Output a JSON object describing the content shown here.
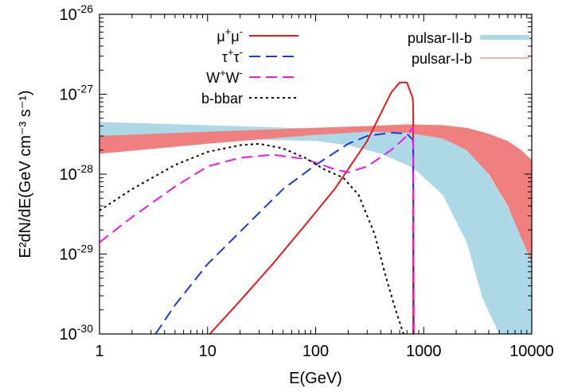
{
  "chart_data": {
    "type": "line",
    "xlabel": "E(GeV)",
    "ylabel": "E²dN/dE(GeV cm⁻³ s⁻¹)",
    "xscale": "log",
    "yscale": "log",
    "xlim": [
      1,
      10000
    ],
    "ylim": [
      1e-30,
      1e-26
    ],
    "grid": false,
    "legend_placement": "top-left and top-right",
    "x_ticks": [
      {
        "value": 1,
        "label": "1"
      },
      {
        "value": 10,
        "label": "10"
      },
      {
        "value": 100,
        "label": "100"
      },
      {
        "value": 1000,
        "label": "1000"
      },
      {
        "value": 10000,
        "label": "10000"
      }
    ],
    "y_ticks": [
      {
        "value": 1e-30,
        "base": "10",
        "exp": "-30"
      },
      {
        "value": 1e-29,
        "base": "10",
        "exp": "-29"
      },
      {
        "value": 1e-28,
        "base": "10",
        "exp": "-28"
      },
      {
        "value": 1e-27,
        "base": "10",
        "exp": "-27"
      },
      {
        "value": 1e-26,
        "base": "10",
        "exp": "-26"
      }
    ],
    "series": [
      {
        "name": "μ⁺μ⁻",
        "color": "#e41a1c",
        "style": "solid",
        "x": [
          10.5,
          20,
          40,
          80,
          150,
          300,
          500,
          600,
          700,
          790,
          800,
          800
        ],
        "y": [
          1e-30,
          2.6e-30,
          7.5e-30,
          2.3e-29,
          6.5e-29,
          2.6e-28,
          1.05e-27,
          1.4e-27,
          1.4e-27,
          9e-28,
          7e-28,
          1e-30
        ]
      },
      {
        "name": "τ⁺τ⁻",
        "color": "#1f3bd6",
        "style": "dashed",
        "x": [
          3.3,
          5,
          10,
          20,
          50,
          100,
          200,
          300,
          500,
          700,
          790,
          800,
          810
        ],
        "y": [
          1e-30,
          2.3e-30,
          7.5e-30,
          1.9e-29,
          6.5e-29,
          1.3e-28,
          2.4e-28,
          3e-28,
          3.3e-28,
          3.2e-28,
          2.7e-28,
          2.3e-28,
          1e-30
        ]
      },
      {
        "name": "W⁺W⁻",
        "color": "#e81be8",
        "style": "dashed",
        "x": [
          1,
          2,
          5,
          10,
          20,
          40,
          80,
          150,
          200,
          300,
          500,
          700,
          790,
          800,
          810
        ],
        "y": [
          1.4e-29,
          2.9e-29,
          7e-29,
          1.25e-28,
          1.6e-28,
          1.75e-28,
          1.55e-28,
          1.15e-28,
          1.05e-28,
          1.25e-28,
          2e-28,
          3e-28,
          3.8e-28,
          3.8e-28,
          1e-30
        ]
      },
      {
        "name": "b-bbar",
        "color": "#000000",
        "style": "dotted",
        "x": [
          1,
          2,
          5,
          10,
          20,
          30,
          50,
          80,
          120,
          180,
          250,
          350,
          450,
          550,
          600,
          650
        ],
        "y": [
          3.5e-29,
          6.5e-29,
          1.3e-28,
          1.9e-28,
          2.3e-28,
          2.4e-28,
          2.1e-28,
          1.6e-28,
          1.15e-28,
          9e-29,
          5.5e-29,
          1.8e-29,
          5e-30,
          2e-30,
          1.4e-30,
          1e-30
        ]
      }
    ],
    "bands": [
      {
        "name": "pulsar-II-b",
        "color": "#add8e6",
        "x": [
          1,
          10,
          100,
          200,
          400,
          800,
          1500,
          2500,
          3500,
          5000,
          7000,
          10000
        ],
        "upper": [
          4.5e-28,
          4.1e-28,
          3.7e-28,
          3.75e-28,
          3.8e-28,
          3.6e-28,
          3e-28,
          2.1e-28,
          1.3e-28,
          6e-29,
          2.7e-29,
          1e-29
        ],
        "lower": [
          2.7e-28,
          2.8e-28,
          2.6e-28,
          2.3e-28,
          1.8e-28,
          1.2e-28,
          5.5e-29,
          1.4e-29,
          2.8e-30,
          1e-30,
          1e-30,
          1e-30
        ]
      },
      {
        "name": "pulsar-I-b",
        "color": "#f08080",
        "x": [
          1,
          10,
          100,
          300,
          700,
          1500,
          2500,
          4000,
          6000,
          8000,
          10000
        ],
        "upper": [
          3e-28,
          3.4e-28,
          3.8e-28,
          4e-28,
          4.2e-28,
          4.1e-28,
          3.8e-28,
          3.2e-28,
          2.6e-28,
          2e-28,
          1.5e-28
        ],
        "lower": [
          1.8e-28,
          2.4e-28,
          3.1e-28,
          3.4e-28,
          3.3e-28,
          2.8e-28,
          2e-28,
          1e-28,
          4e-29,
          1.6e-29,
          8e-30
        ]
      }
    ],
    "legend_left": [
      {
        "base": "μ",
        "sup1": "+",
        "mid": "μ",
        "sup2": "-",
        "color": "#e41a1c",
        "style": "solid"
      },
      {
        "base": "τ",
        "sup1": "+",
        "mid": "τ",
        "sup2": "-",
        "color": "#1f3bd6",
        "style": "dashed"
      },
      {
        "base": "W",
        "sup1": "+",
        "mid": "W",
        "sup2": "-",
        "color": "#e81be8",
        "style": "dashed"
      },
      {
        "base": "b-bbar",
        "sup1": "",
        "mid": "",
        "sup2": "",
        "color": "#000000",
        "style": "dotted"
      }
    ],
    "legend_right": [
      {
        "label": "pulsar-II-b",
        "color": "#add8e6",
        "style": "thick"
      },
      {
        "label": "pulsar-I-b",
        "color": "#f08080",
        "style": "thin"
      }
    ]
  }
}
